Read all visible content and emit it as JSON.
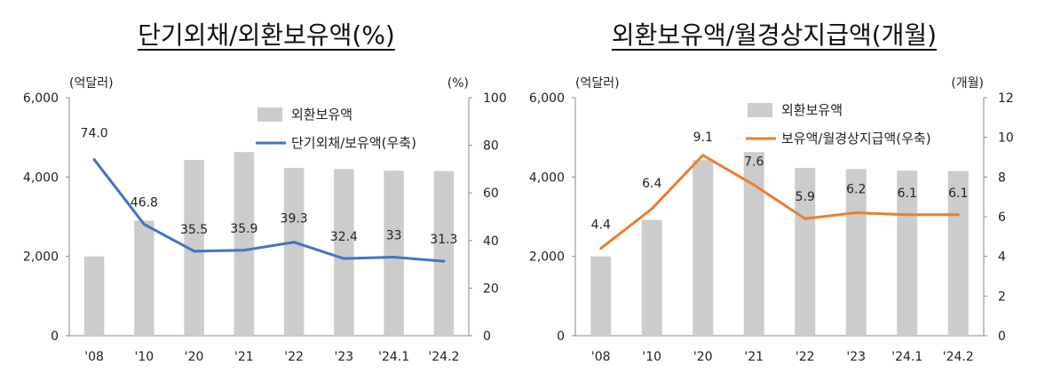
{
  "chart_data": [
    {
      "type": "bar+line",
      "title": "단기외채/외환보유액(%)",
      "left_axis_unit": "(억달러)",
      "right_axis_unit": "(%)",
      "categories": [
        "'08",
        "'10",
        "'20",
        "'21",
        "'22",
        "'23",
        "'24.1",
        "'24.2"
      ],
      "ylim_left": [
        0,
        6000
      ],
      "yticks_left": [
        "0",
        "2,000",
        "4,000",
        "6,000"
      ],
      "ylim_right": [
        0,
        100
      ],
      "yticks_right": [
        "0",
        "20",
        "40",
        "60",
        "80",
        "100"
      ],
      "series": [
        {
          "name": "외환보유액",
          "kind": "bar",
          "axis": "left",
          "color": "#cccccc",
          "values": [
            2000,
            2900,
            4430,
            4630,
            4230,
            4200,
            4160,
            4150
          ]
        },
        {
          "name": "단기외채/보유액(우축)",
          "kind": "line",
          "axis": "right",
          "color": "#4472c4",
          "values": [
            74.0,
            46.8,
            35.5,
            35.9,
            39.3,
            32.4,
            33,
            31.3
          ],
          "labels": [
            "74.0",
            "46.8",
            "35.5",
            "35.9",
            "39.3",
            "32.4",
            "33",
            "31.3"
          ]
        }
      ],
      "legend": "top-right",
      "grid": false
    },
    {
      "type": "bar+line",
      "title": "외환보유액/월경상지급액(개월)",
      "left_axis_unit": "(억달러)",
      "right_axis_unit": "(개월)",
      "categories": [
        "'08",
        "'10",
        "'20",
        "'21",
        "'22",
        "'23",
        "'24.1",
        "'24.2"
      ],
      "ylim_left": [
        0,
        6000
      ],
      "yticks_left": [
        "0",
        "2,000",
        "4,000",
        "6,000"
      ],
      "ylim_right": [
        0,
        12
      ],
      "yticks_right": [
        "0",
        "2",
        "4",
        "6",
        "8",
        "10",
        "12"
      ],
      "series": [
        {
          "name": "외환보유액",
          "kind": "bar",
          "axis": "left",
          "color": "#cccccc",
          "values": [
            2000,
            2920,
            4430,
            4630,
            4230,
            4200,
            4160,
            4150
          ]
        },
        {
          "name": "보유액/월경상지급액(우축)",
          "kind": "line",
          "axis": "right",
          "color": "#ed7d31",
          "values": [
            4.4,
            6.4,
            9.1,
            7.6,
            5.9,
            6.2,
            6.1,
            6.1
          ],
          "labels": [
            "4.4",
            "6.4",
            "9.1",
            "7.6",
            "5.9",
            "6.2",
            "6.1",
            "6.1"
          ]
        }
      ],
      "legend": "top-right",
      "grid": false
    }
  ]
}
